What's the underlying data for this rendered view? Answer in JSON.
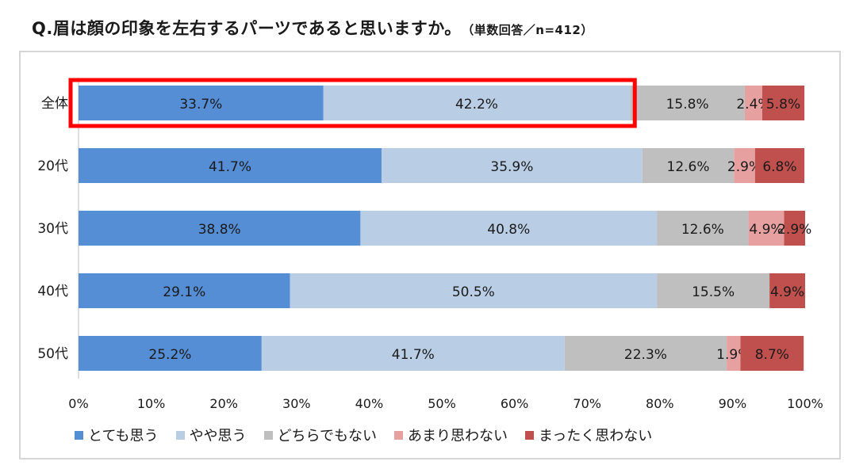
{
  "title": {
    "main": "Q.眉は顔の印象を左右するパーツであると思いますか。",
    "sub": "（単数回答／n=412）"
  },
  "chart_data": {
    "type": "bar",
    "orientation": "horizontal",
    "stacked": true,
    "categories": [
      "全体",
      "20代",
      "30代",
      "40代",
      "50代"
    ],
    "series": [
      {
        "name": "とても思う",
        "color": "#558ed5",
        "values": [
          33.7,
          41.7,
          38.8,
          29.1,
          25.2
        ],
        "labels": [
          "33.7%",
          "41.7%",
          "38.8%",
          "29.1%",
          "25.2%"
        ]
      },
      {
        "name": "やや思う",
        "color": "#b9cde5",
        "values": [
          42.2,
          35.9,
          40.8,
          50.5,
          41.7
        ],
        "labels": [
          "42.2%",
          "35.9%",
          "40.8%",
          "50.5%",
          "41.7%"
        ]
      },
      {
        "name": "どちらでもない",
        "color": "#bfbfbf",
        "values": [
          15.8,
          12.6,
          12.6,
          15.5,
          22.3
        ],
        "labels": [
          "15.8%",
          "12.6%",
          "12.6%",
          "15.5%",
          "22.3%"
        ]
      },
      {
        "name": "あまり思わない",
        "color": "#e6a0a0",
        "values": [
          2.4,
          2.9,
          4.9,
          0,
          1.9
        ],
        "labels": [
          "2.4%",
          "2.9%",
          "4.9%",
          "",
          "1.9%"
        ]
      },
      {
        "name": "まったく思わない",
        "color": "#c0504d",
        "values": [
          5.8,
          6.8,
          2.9,
          4.9,
          8.7
        ],
        "labels": [
          "5.8%",
          "6.8%",
          "2.9%",
          "4.9%",
          "8.7%"
        ]
      }
    ],
    "xlim": [
      0,
      100
    ],
    "x_ticks": [
      "0%",
      "10%",
      "20%",
      "30%",
      "40%",
      "50%",
      "60%",
      "70%",
      "80%",
      "90%",
      "100%"
    ],
    "grid": false,
    "legend_position": "bottom",
    "highlight": {
      "category": "全体",
      "series": [
        "とても思う",
        "やや思う"
      ],
      "color": "#ff0000"
    }
  }
}
